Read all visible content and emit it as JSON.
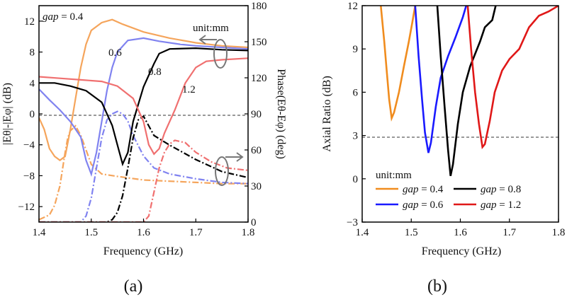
{
  "chart_data": [
    {
      "id": "a",
      "type": "line",
      "panel_label": "(a)",
      "xlabel": "Frequency (GHz)",
      "ylabel": "|Eθ|-|Eφ| (dB)",
      "y2label": "Phase(Eθ-Eφ) (deg)",
      "xlim": [
        1.4,
        1.8
      ],
      "ylim": [
        -14,
        14
      ],
      "y2lim": [
        0,
        180
      ],
      "xticks": [
        "1.4",
        "1.5",
        "1.6",
        "1.7",
        "1.8"
      ],
      "yticks": [
        "-12",
        "-8",
        "-4",
        "0",
        "4",
        "8",
        "12"
      ],
      "y2ticks": [
        "0",
        "30",
        "60",
        "90",
        "120",
        "150",
        "180"
      ],
      "unit_note": "unit:mm",
      "reference_line_y": 0,
      "series": [
        {
          "gap": "0.4",
          "label": "gap = 0.4",
          "color": "#f5a55c",
          "magnitude": [
            [
              1.4,
              -0.5
            ],
            [
              1.41,
              -2.0
            ],
            [
              1.42,
              -4.5
            ],
            [
              1.43,
              -5.5
            ],
            [
              1.44,
              -6.0
            ],
            [
              1.45,
              -5.5
            ],
            [
              1.46,
              -2.0
            ],
            [
              1.47,
              2.0
            ],
            [
              1.48,
              6.0
            ],
            [
              1.49,
              9.0
            ],
            [
              1.5,
              10.8
            ],
            [
              1.52,
              11.8
            ],
            [
              1.54,
              12.2
            ],
            [
              1.56,
              11.6
            ],
            [
              1.6,
              10.6
            ],
            [
              1.65,
              9.8
            ],
            [
              1.7,
              9.2
            ],
            [
              1.75,
              8.8
            ],
            [
              1.8,
              8.6
            ]
          ],
          "phase": [
            [
              1.4,
              2
            ],
            [
              1.41,
              4
            ],
            [
              1.42,
              6
            ],
            [
              1.43,
              14
            ],
            [
              1.44,
              30
            ],
            [
              1.45,
              58
            ],
            [
              1.455,
              70
            ],
            [
              1.46,
              76
            ],
            [
              1.47,
              80
            ],
            [
              1.48,
              72
            ],
            [
              1.49,
              60
            ],
            [
              1.5,
              48
            ],
            [
              1.52,
              40
            ],
            [
              1.55,
              38
            ],
            [
              1.6,
              35
            ],
            [
              1.65,
              34
            ],
            [
              1.7,
              33
            ],
            [
              1.75,
              32
            ],
            [
              1.8,
              32
            ]
          ]
        },
        {
          "gap": "0.6",
          "label": "0.6",
          "color": "#8083f0",
          "magnitude": [
            [
              1.4,
              3.2
            ],
            [
              1.42,
              1.8
            ],
            [
              1.44,
              0.5
            ],
            [
              1.46,
              -1.0
            ],
            [
              1.48,
              -3.0
            ],
            [
              1.49,
              -6.0
            ],
            [
              1.5,
              -7.8
            ],
            [
              1.51,
              -5.0
            ],
            [
              1.52,
              -1.0
            ],
            [
              1.53,
              3.0
            ],
            [
              1.54,
              6.0
            ],
            [
              1.55,
              8.0
            ],
            [
              1.57,
              9.5
            ],
            [
              1.6,
              9.8
            ],
            [
              1.63,
              9.4
            ],
            [
              1.67,
              9.0
            ],
            [
              1.7,
              8.8
            ],
            [
              1.75,
              8.6
            ],
            [
              1.8,
              8.4
            ]
          ],
          "phase": [
            [
              1.4,
              0
            ],
            [
              1.48,
              0
            ],
            [
              1.49,
              5
            ],
            [
              1.5,
              20
            ],
            [
              1.51,
              45
            ],
            [
              1.52,
              70
            ],
            [
              1.53,
              85
            ],
            [
              1.54,
              90
            ],
            [
              1.55,
              92
            ],
            [
              1.56,
              90
            ],
            [
              1.57,
              84
            ],
            [
              1.58,
              72
            ],
            [
              1.6,
              55
            ],
            [
              1.62,
              45
            ],
            [
              1.65,
              40
            ],
            [
              1.7,
              36
            ],
            [
              1.75,
              33
            ],
            [
              1.8,
              32
            ]
          ]
        },
        {
          "gap": "0.8",
          "label": "0.8",
          "color": "#000000",
          "magnitude": [
            [
              1.4,
              4.0
            ],
            [
              1.43,
              4.0
            ],
            [
              1.46,
              3.6
            ],
            [
              1.49,
              3.0
            ],
            [
              1.52,
              1.5
            ],
            [
              1.54,
              -1.5
            ],
            [
              1.55,
              -4.0
            ],
            [
              1.56,
              -6.5
            ],
            [
              1.57,
              -5.0
            ],
            [
              1.58,
              -1.0
            ],
            [
              1.6,
              3.5
            ],
            [
              1.62,
              6.5
            ],
            [
              1.63,
              7.8
            ],
            [
              1.65,
              8.4
            ],
            [
              1.7,
              8.5
            ],
            [
              1.75,
              8.3
            ],
            [
              1.8,
              8.2
            ]
          ],
          "phase": [
            [
              1.4,
              0
            ],
            [
              1.53,
              0
            ],
            [
              1.54,
              2
            ],
            [
              1.55,
              8
            ],
            [
              1.56,
              22
            ],
            [
              1.57,
              45
            ],
            [
              1.58,
              70
            ],
            [
              1.59,
              85
            ],
            [
              1.6,
              88
            ],
            [
              1.61,
              80
            ],
            [
              1.62,
              72
            ],
            [
              1.65,
              64
            ],
            [
              1.7,
              52
            ],
            [
              1.75,
              42
            ],
            [
              1.8,
              37
            ]
          ]
        },
        {
          "gap": "1.2",
          "label": "1.2",
          "color": "#f07070",
          "magnitude": [
            [
              1.4,
              4.8
            ],
            [
              1.44,
              4.6
            ],
            [
              1.48,
              4.4
            ],
            [
              1.52,
              4.2
            ],
            [
              1.55,
              3.6
            ],
            [
              1.58,
              2.0
            ],
            [
              1.6,
              -1.0
            ],
            [
              1.61,
              -4.0
            ],
            [
              1.62,
              -5.2
            ],
            [
              1.63,
              -4.5
            ],
            [
              1.64,
              -2.5
            ],
            [
              1.66,
              0.5
            ],
            [
              1.68,
              4.0
            ],
            [
              1.7,
              6.0
            ],
            [
              1.72,
              6.8
            ],
            [
              1.75,
              7.0
            ],
            [
              1.8,
              7.2
            ]
          ],
          "phase": [
            [
              1.4,
              0
            ],
            [
              1.6,
              0
            ],
            [
              1.61,
              5
            ],
            [
              1.62,
              25
            ],
            [
              1.63,
              45
            ],
            [
              1.64,
              58
            ],
            [
              1.65,
              65
            ],
            [
              1.66,
              68
            ],
            [
              1.68,
              66
            ],
            [
              1.7,
              58
            ],
            [
              1.73,
              50
            ],
            [
              1.76,
              45
            ],
            [
              1.8,
              43
            ]
          ]
        }
      ],
      "annotations": [
        {
          "text": "gap = 0.4",
          "italic_part": "gap"
        },
        {
          "text": "0.6"
        },
        {
          "text": "0.8"
        },
        {
          "text": "1.2"
        },
        {
          "text": "unit:mm"
        }
      ]
    },
    {
      "id": "b",
      "type": "line",
      "panel_label": "(b)",
      "xlabel": "Frequency (GHz)",
      "ylabel": "Axial Ratio (dB)",
      "xlim": [
        1.4,
        1.8
      ],
      "ylim": [
        -3,
        12
      ],
      "xticks": [
        "1.4",
        "1.5",
        "1.6",
        "1.7",
        "1.8"
      ],
      "yticks": [
        "-3",
        "0",
        "3",
        "6",
        "9",
        "12"
      ],
      "reference_line_y": 3,
      "legend_title": "unit:mm",
      "legend_placement": "bottom",
      "series": [
        {
          "name": "gap = 0.4",
          "color": "#f08c1e",
          "values": [
            [
              1.438,
              12.0
            ],
            [
              1.445,
              9.5
            ],
            [
              1.45,
              7.5
            ],
            [
              1.455,
              5.5
            ],
            [
              1.46,
              4.2
            ],
            [
              1.465,
              4.6
            ],
            [
              1.475,
              6.0
            ],
            [
              1.485,
              7.8
            ],
            [
              1.495,
              9.5
            ],
            [
              1.502,
              10.8
            ],
            [
              1.508,
              12.0
            ]
          ]
        },
        {
          "name": "gap = 0.6",
          "color": "#1a1aff",
          "values": [
            [
              1.508,
              12.0
            ],
            [
              1.515,
              8.5
            ],
            [
              1.522,
              5.5
            ],
            [
              1.528,
              3.2
            ],
            [
              1.535,
              1.8
            ],
            [
              1.54,
              2.5
            ],
            [
              1.55,
              5.0
            ],
            [
              1.56,
              7.0
            ],
            [
              1.575,
              8.5
            ],
            [
              1.59,
              9.8
            ],
            [
              1.605,
              11.2
            ],
            [
              1.612,
              12.0
            ]
          ]
        },
        {
          "name": "gap = 0.8",
          "color": "#000000",
          "values": [
            [
              1.553,
              12.0
            ],
            [
              1.56,
              8.5
            ],
            [
              1.568,
              5.0
            ],
            [
              1.575,
              2.0
            ],
            [
              1.58,
              0.2
            ],
            [
              1.585,
              1.0
            ],
            [
              1.595,
              3.8
            ],
            [
              1.605,
              6.0
            ],
            [
              1.62,
              7.8
            ],
            [
              1.64,
              9.5
            ],
            [
              1.65,
              10.5
            ],
            [
              1.665,
              11.0
            ],
            [
              1.672,
              12.0
            ]
          ]
        },
        {
          "name": "gap = 1.2",
          "color": "#e01818",
          "values": [
            [
              1.615,
              12.0
            ],
            [
              1.622,
              9.0
            ],
            [
              1.63,
              6.0
            ],
            [
              1.638,
              3.8
            ],
            [
              1.645,
              2.2
            ],
            [
              1.65,
              2.4
            ],
            [
              1.66,
              4.0
            ],
            [
              1.67,
              6.0
            ],
            [
              1.685,
              7.5
            ],
            [
              1.7,
              8.3
            ],
            [
              1.72,
              9.0
            ],
            [
              1.74,
              10.5
            ],
            [
              1.76,
              11.3
            ],
            [
              1.78,
              11.6
            ],
            [
              1.8,
              12.0
            ]
          ]
        }
      ]
    }
  ]
}
